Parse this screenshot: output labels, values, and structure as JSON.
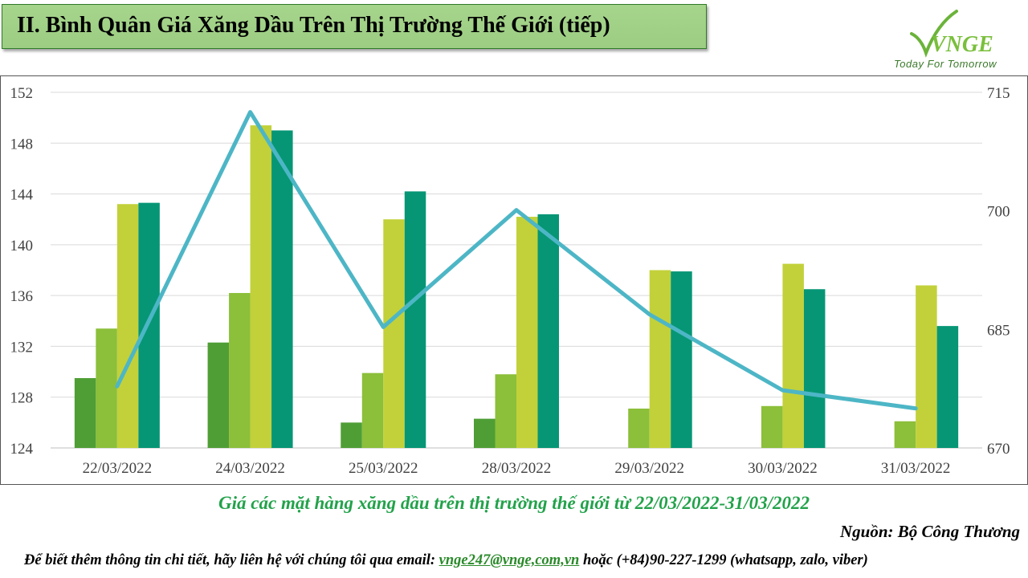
{
  "header": {
    "title": "II. Bình Quân Giá Xăng Dầu Trên Thị Trường Thế Giới (tiếp)",
    "logo_text": "VNGE",
    "logo_tagline": "Today For Tomorrow"
  },
  "colors": {
    "title_bg": "#9ccd82",
    "bar_series": [
      "#4e9e35",
      "#8cbf3a",
      "#c2d13a",
      "#069675"
    ],
    "line": "#4db6c6",
    "caption": "#22a24a"
  },
  "chart_data": {
    "type": "bar",
    "categories": [
      "22/03/2022",
      "24/03/2022",
      "25/03/2022",
      "28/03/2022",
      "29/03/2022",
      "30/03/2022",
      "31/03/2022"
    ],
    "series": [
      {
        "values": [
          129.5,
          132.3,
          126.0,
          126.3,
          null,
          null,
          null
        ],
        "axis": "left",
        "type": "bar"
      },
      {
        "values": [
          133.4,
          136.2,
          129.9,
          129.8,
          127.1,
          127.3,
          126.1
        ],
        "axis": "left",
        "type": "bar"
      },
      {
        "values": [
          143.2,
          149.4,
          142.0,
          142.2,
          138.0,
          138.5,
          136.8
        ],
        "axis": "left",
        "type": "bar"
      },
      {
        "values": [
          143.3,
          149.0,
          144.2,
          142.4,
          137.9,
          136.5,
          133.6
        ],
        "axis": "left",
        "type": "bar"
      },
      {
        "values": [
          677.8,
          712.5,
          685.3,
          700.1,
          686.9,
          677.3,
          675.0
        ],
        "axis": "right",
        "type": "line"
      }
    ],
    "y_left": {
      "min": 124,
      "max": 152,
      "ticks": [
        "124",
        "128",
        "132",
        "136",
        "140",
        "144",
        "148",
        "152"
      ]
    },
    "y_right": {
      "min": 670,
      "max": 715,
      "ticks": [
        "670",
        "685",
        "700",
        "715"
      ]
    },
    "grid": true,
    "legend": "none"
  },
  "caption": "Giá các mặt hàng xăng dầu trên thị trường thế giới từ 22/03/2022-31/03/2022",
  "source": "Nguồn: Bộ Công Thương",
  "contact": {
    "prefix": "Để biết thêm thông tin chi tiết, hãy liên hệ với chúng tôi qua email: ",
    "email": "vnge247@vnge,com,vn",
    "suffix": " hoặc (+84)90-227-1299 (whatsapp, zalo, viber)"
  }
}
